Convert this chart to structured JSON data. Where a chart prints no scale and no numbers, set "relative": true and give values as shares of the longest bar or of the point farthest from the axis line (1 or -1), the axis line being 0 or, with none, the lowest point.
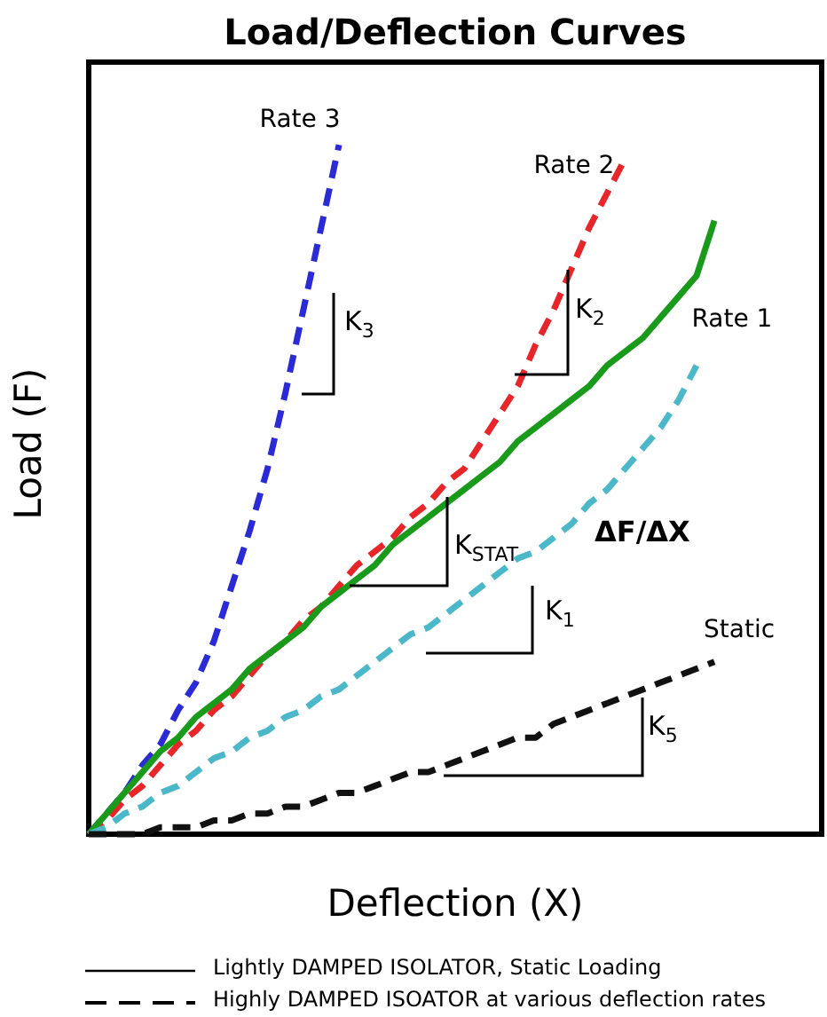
{
  "chart_data": {
    "type": "line",
    "title": "Load/Deflection Curves",
    "xlabel": "Deflection (X)",
    "ylabel": "Load (F)",
    "relative": true,
    "line_style": "dashed",
    "categories": [
      null,
      null,
      null,
      null,
      null,
      null,
      null,
      null,
      null,
      null,
      null,
      null,
      null,
      null,
      null,
      null,
      null,
      null,
      null,
      null,
      null,
      null,
      null,
      null,
      null,
      null,
      null,
      null,
      null,
      null,
      null,
      null,
      null,
      null,
      null,
      null,
      null,
      null,
      null,
      null,
      null,
      null
    ],
    "series": [
      {
        "name": "Rate 3",
        "color": "#2a2ad6",
        "values": [
          0,
          0.03,
          0.06,
          0.1,
          0.13,
          0.18,
          0.22,
          0.28,
          0.36,
          0.44,
          0.53,
          0.64,
          0.76,
          0.88,
          1.0,
          null,
          null,
          null,
          null,
          null,
          null,
          null,
          null,
          null,
          null,
          null,
          null,
          null,
          null,
          null,
          null,
          null,
          null,
          null,
          null,
          null,
          null,
          null,
          null,
          null,
          null,
          null
        ]
      },
      {
        "name": "Rate 2",
        "color": "#e8262a",
        "values": [
          0,
          0.02,
          0.05,
          0.07,
          0.1,
          0.13,
          0.15,
          0.18,
          0.2,
          0.23,
          0.26,
          0.28,
          0.31,
          0.33,
          0.36,
          0.39,
          0.41,
          0.43,
          0.46,
          0.48,
          0.51,
          0.53,
          0.57,
          0.61,
          0.65,
          0.71,
          0.76,
          0.82,
          0.88,
          0.93,
          0.98,
          null,
          null,
          null,
          null,
          null,
          null,
          null,
          null,
          null,
          null,
          null
        ]
      },
      {
        "color": "#1a9a1a",
        "line_style": "solid",
        "values": [
          0,
          0.03,
          0.06,
          0.09,
          0.12,
          0.14,
          0.17,
          0.19,
          0.21,
          0.24,
          0.26,
          0.28,
          0.3,
          0.33,
          0.35,
          0.37,
          0.39,
          0.42,
          0.44,
          0.46,
          0.48,
          0.5,
          0.52,
          0.54,
          0.57,
          0.59,
          0.61,
          0.63,
          0.65,
          0.68,
          0.7,
          0.72,
          0.75,
          0.78,
          0.81,
          0.89,
          null,
          null,
          null,
          null,
          null,
          null
        ]
      },
      {
        "name": "Rate 1",
        "color": "#4ab8c8",
        "values": [
          0,
          0.01,
          0.03,
          0.04,
          0.06,
          0.07,
          0.09,
          0.11,
          0.12,
          0.14,
          0.15,
          0.17,
          0.18,
          0.2,
          0.21,
          0.23,
          0.25,
          0.27,
          0.29,
          0.3,
          0.32,
          0.34,
          0.36,
          0.38,
          0.4,
          0.41,
          0.43,
          0.45,
          0.48,
          0.5,
          0.53,
          0.56,
          0.59,
          0.63,
          0.68,
          null,
          null,
          null,
          null,
          null,
          null,
          null
        ]
      },
      {
        "name": "Static",
        "color": "#111111",
        "values": [
          0,
          0,
          0,
          0,
          0.01,
          0.01,
          0.01,
          0.02,
          0.02,
          0.03,
          0.03,
          0.04,
          0.04,
          0.05,
          0.06,
          0.06,
          0.07,
          0.08,
          0.09,
          0.09,
          0.1,
          0.11,
          0.12,
          0.13,
          0.14,
          0.14,
          0.16,
          0.17,
          0.18,
          0.19,
          0.2,
          0.21,
          0.22,
          0.23,
          0.24,
          0.25,
          null,
          null,
          null,
          null,
          null,
          null
        ]
      }
    ],
    "annotations": [
      "K$_{3}$",
      "K$_{2}$",
      "K$_{STAT}$",
      "ΔF/ΔX",
      "K$_{1}$",
      "K$_{5}$",
      "Lightly DAMPED ISOLATOR, Static Loading",
      "Highly DAMPED ISOATOR at various deflection rates"
    ]
  }
}
